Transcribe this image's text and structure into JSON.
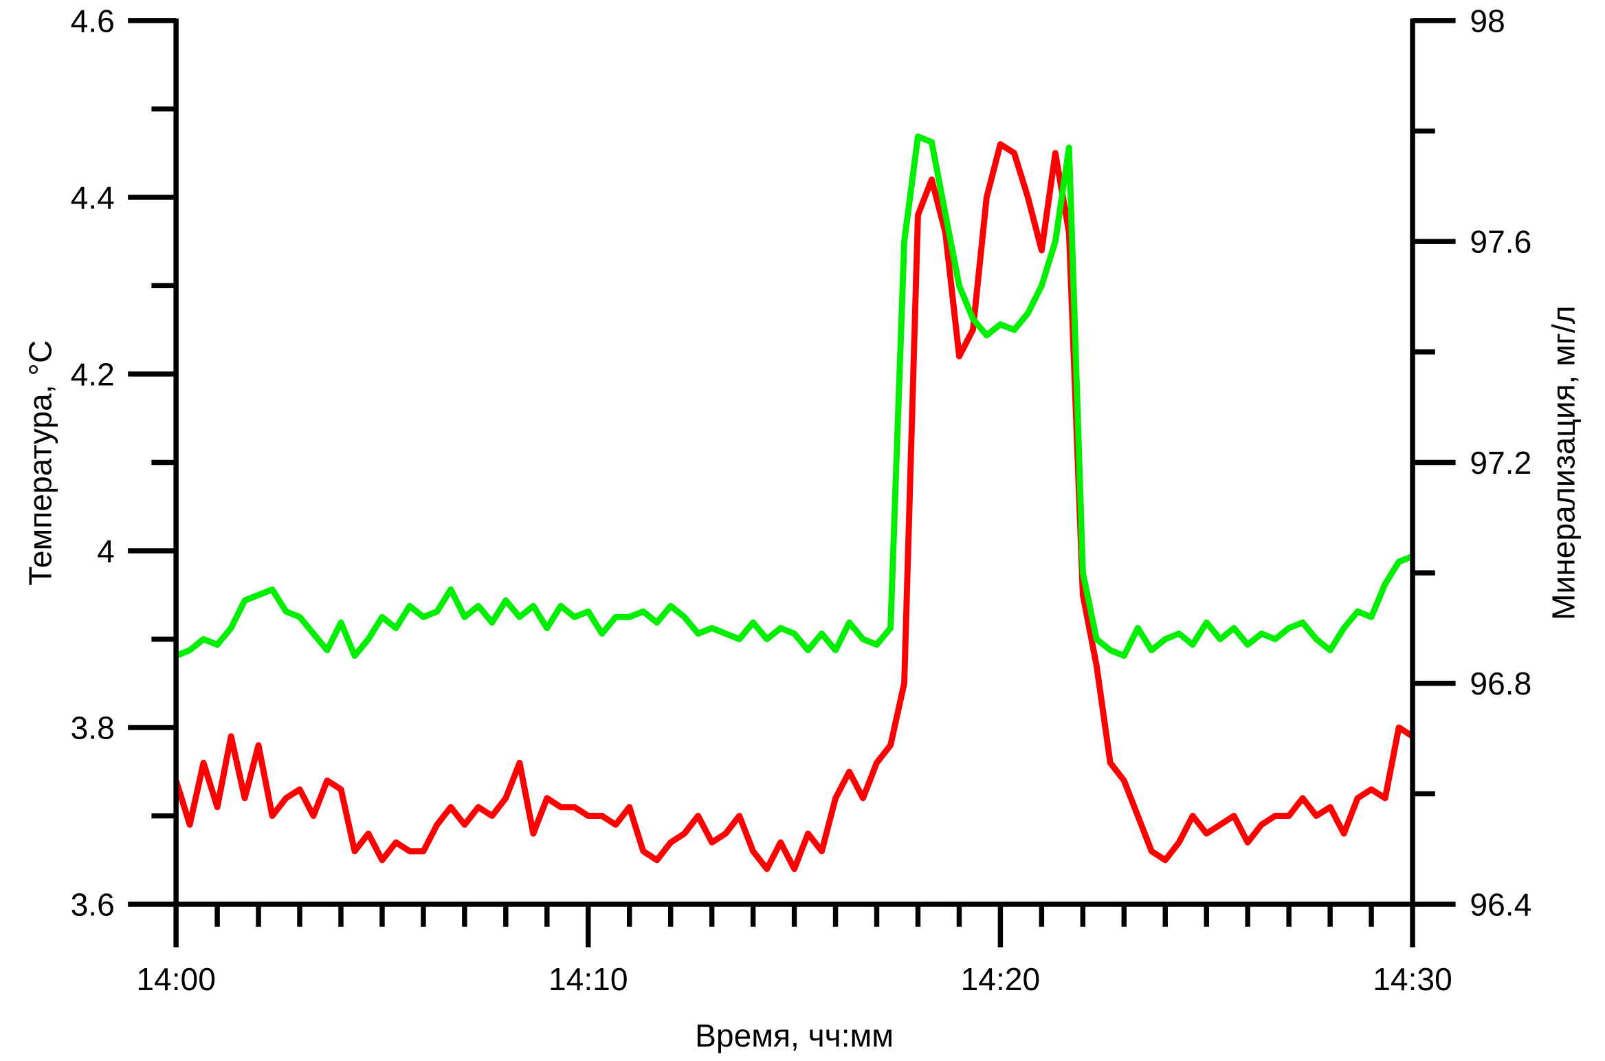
{
  "chart_data": {
    "type": "line",
    "xlabel": "Время, чч:мм",
    "ylabel": "Температура, °C",
    "y2label": "Минерализация, мг/л",
    "xlim": [
      "14:00",
      "14:30"
    ],
    "xticks": [
      "14:00",
      "14:10",
      "14:20",
      "14:30"
    ],
    "xminorticks": [
      "14:01",
      "14:02",
      "14:03",
      "14:04",
      "14:05",
      "14:06",
      "14:07",
      "14:08",
      "14:09",
      "14:11",
      "14:12",
      "14:13",
      "14:14",
      "14:15",
      "14:16",
      "14:17",
      "14:18",
      "14:19",
      "14:21",
      "14:22",
      "14:23",
      "14:24",
      "14:25",
      "14:26",
      "14:27",
      "14:28",
      "14:29"
    ],
    "ylim": [
      3.6,
      4.6
    ],
    "yticks": [
      3.6,
      3.8,
      4,
      4.2,
      4.4,
      4.6
    ],
    "yminorticks": [
      3.7,
      3.9,
      4.1,
      4.3,
      4.5
    ],
    "y2lim": [
      96.4,
      98
    ],
    "y2ticks": [
      96.4,
      96.8,
      97.2,
      97.6,
      98
    ],
    "y2minorticks": [
      96.6,
      97,
      97.4,
      97.8
    ],
    "x": [
      "14:00:00",
      "14:00:20",
      "14:00:40",
      "14:01:00",
      "14:01:20",
      "14:01:40",
      "14:02:00",
      "14:02:20",
      "14:02:40",
      "14:03:00",
      "14:03:20",
      "14:03:40",
      "14:04:00",
      "14:04:20",
      "14:04:40",
      "14:05:00",
      "14:05:20",
      "14:05:40",
      "14:06:00",
      "14:06:20",
      "14:06:40",
      "14:07:00",
      "14:07:20",
      "14:07:40",
      "14:08:00",
      "14:08:20",
      "14:08:40",
      "14:09:00",
      "14:09:20",
      "14:09:40",
      "14:10:00",
      "14:10:20",
      "14:10:40",
      "14:11:00",
      "14:11:20",
      "14:11:40",
      "14:12:00",
      "14:12:20",
      "14:12:40",
      "14:13:00",
      "14:13:20",
      "14:13:40",
      "14:14:00",
      "14:14:20",
      "14:14:40",
      "14:15:00",
      "14:15:20",
      "14:15:40",
      "14:16:00",
      "14:16:20",
      "14:16:40",
      "14:17:00",
      "14:17:20",
      "14:17:40",
      "14:18:00",
      "14:18:20",
      "14:18:40",
      "14:19:00",
      "14:19:20",
      "14:19:40",
      "14:20:00",
      "14:20:20",
      "14:20:40",
      "14:21:00",
      "14:21:20",
      "14:21:40",
      "14:22:00",
      "14:22:20",
      "14:22:40",
      "14:23:00",
      "14:23:20",
      "14:23:40",
      "14:24:00",
      "14:24:20",
      "14:24:40",
      "14:25:00",
      "14:25:20",
      "14:25:40",
      "14:26:00",
      "14:26:20",
      "14:26:40",
      "14:27:00",
      "14:27:20",
      "14:27:40",
      "14:28:00",
      "14:28:20",
      "14:28:40",
      "14:29:00",
      "14:29:20",
      "14:29:40",
      "14:30:00"
    ],
    "series": [
      {
        "color": "#ff0000",
        "values": [
          3.74,
          3.69,
          3.76,
          3.71,
          3.79,
          3.72,
          3.78,
          3.7,
          3.72,
          3.73,
          3.7,
          3.74,
          3.73,
          3.66,
          3.68,
          3.65,
          3.67,
          3.66,
          3.66,
          3.69,
          3.71,
          3.69,
          3.71,
          3.7,
          3.72,
          3.76,
          3.68,
          3.72,
          3.71,
          3.71,
          3.7,
          3.7,
          3.69,
          3.71,
          3.66,
          3.65,
          3.67,
          3.68,
          3.7,
          3.67,
          3.68,
          3.7,
          3.66,
          3.64,
          3.67,
          3.64,
          3.68,
          3.66,
          3.72,
          3.75,
          3.72,
          3.76,
          3.78,
          3.85,
          4.38,
          4.42,
          4.36,
          4.22,
          4.25,
          4.4,
          4.46,
          4.45,
          4.4,
          4.34,
          4.45,
          4.36,
          3.95,
          3.87,
          3.76,
          3.74,
          3.7,
          3.66,
          3.65,
          3.67,
          3.7,
          3.68,
          3.69,
          3.7,
          3.67,
          3.69,
          3.7,
          3.7,
          3.72,
          3.7,
          3.71,
          3.68,
          3.72,
          3.73,
          3.72,
          3.8,
          3.79
        ]
      },
      {
        "color": "#00ee00",
        "axis": "y2",
        "values": [
          96.85,
          96.86,
          96.88,
          96.87,
          96.9,
          96.95,
          96.96,
          96.97,
          96.93,
          96.92,
          96.89,
          96.86,
          96.91,
          96.85,
          96.88,
          96.92,
          96.9,
          96.94,
          96.92,
          96.93,
          96.97,
          96.92,
          96.94,
          96.91,
          96.95,
          96.92,
          96.94,
          96.9,
          96.94,
          96.92,
          96.93,
          96.89,
          96.92,
          96.92,
          96.93,
          96.91,
          96.94,
          96.92,
          96.89,
          96.9,
          96.89,
          96.88,
          96.91,
          96.88,
          96.9,
          96.89,
          96.86,
          96.89,
          96.86,
          96.91,
          96.88,
          96.87,
          96.9,
          97.6,
          97.79,
          97.78,
          97.65,
          97.52,
          97.46,
          97.43,
          97.45,
          97.44,
          97.47,
          97.52,
          97.6,
          97.77,
          97.0,
          96.88,
          96.86,
          96.85,
          96.9,
          96.86,
          96.88,
          96.89,
          96.87,
          96.91,
          96.88,
          96.9,
          96.87,
          96.89,
          96.88,
          96.9,
          96.91,
          96.88,
          96.86,
          96.9,
          96.93,
          96.92,
          96.98,
          97.02,
          97.03
        ]
      }
    ]
  }
}
